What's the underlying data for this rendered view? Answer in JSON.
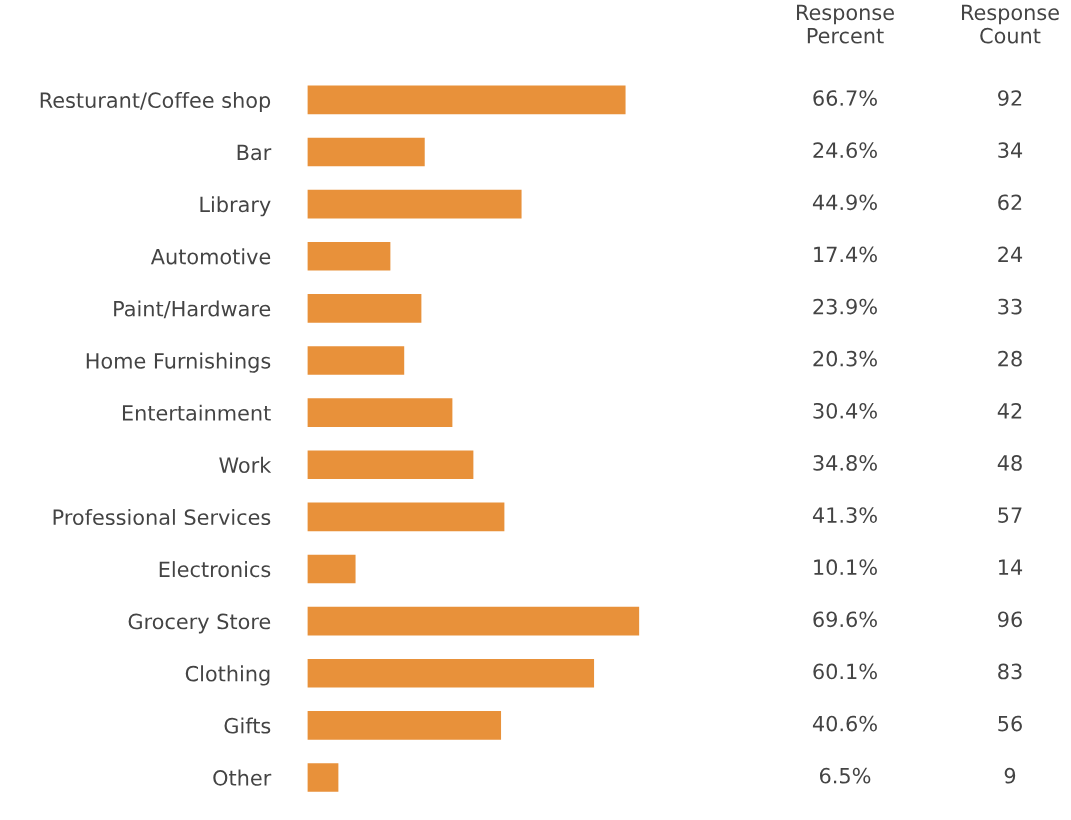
{
  "chart_data": {
    "type": "bar",
    "orientation": "horizontal",
    "color": "#e8913a",
    "categories": [
      "Resturant/Coffee shop",
      "Bar",
      "Library",
      "Automotive",
      "Paint/Hardware",
      "Home Furnishings",
      "Entertainment",
      "Work",
      "Professional Services",
      "Electronics",
      "Grocery Store",
      "Clothing",
      "Gifts",
      "Other"
    ],
    "values": [
      66.7,
      24.6,
      44.9,
      17.4,
      23.9,
      20.3,
      30.4,
      34.8,
      41.3,
      10.1,
      69.6,
      60.1,
      40.6,
      6.5
    ],
    "value_labels": [
      "66.7%",
      "24.6%",
      "44.9%",
      "17.4%",
      "23.9%",
      "20.3%",
      "30.4%",
      "34.8%",
      "41.3%",
      "10.1%",
      "69.6%",
      "60.1%",
      "40.6%",
      "6.5%"
    ],
    "annotations": [
      "Response\nPercent",
      "Response\nCount",
      "92",
      "34",
      "62",
      "24",
      "33",
      "28",
      "42",
      "48",
      "57",
      "14",
      "96",
      "83",
      "56",
      "9"
    ],
    "grid": false,
    "legend": false
  }
}
